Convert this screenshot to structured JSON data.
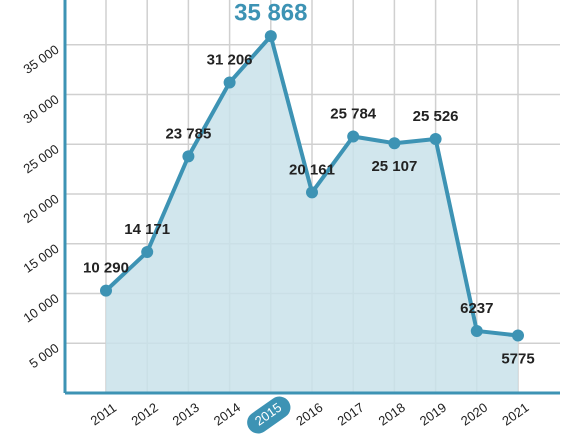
{
  "chart_data": {
    "type": "area",
    "categories": [
      "2011",
      "2012",
      "2013",
      "2014",
      "2015",
      "2016",
      "2017",
      "2018",
      "2019",
      "2020",
      "2021"
    ],
    "values": [
      10290,
      14171,
      23785,
      31206,
      35868,
      20161,
      25784,
      25107,
      25526,
      6237,
      5775
    ],
    "value_labels": [
      "10 290",
      "14 171",
      "23 785",
      "31 206",
      "35 868",
      "20 161",
      "25 784",
      "25 107",
      "25 526",
      "6237",
      "5775"
    ],
    "highlight": 4,
    "color": "#3d93b4",
    "fill": "#c9e2ea",
    "ylim": [
      0,
      39500
    ],
    "yticks": [
      {
        "value": 5000,
        "label": "5 000"
      },
      {
        "value": 10000,
        "label": "10 000"
      },
      {
        "value": 15000,
        "label": "15 000"
      },
      {
        "value": 20000,
        "label": "20 000"
      },
      {
        "value": 25000,
        "label": "25 000"
      },
      {
        "value": 30000,
        "label": "30 000"
      },
      {
        "value": 35000,
        "label": "35 000"
      }
    ],
    "grid": true
  }
}
